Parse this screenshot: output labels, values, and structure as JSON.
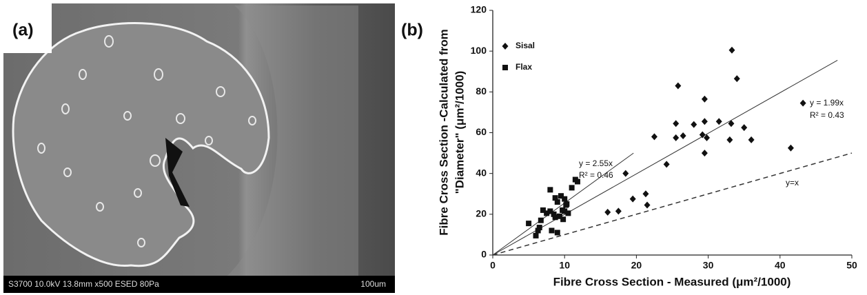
{
  "image_panel": {
    "label": "(a)",
    "info": "S3700 10.0kV 13.8mm x500 ESED 80Pa",
    "scale": "100um"
  },
  "chart_data": {
    "type": "scatter",
    "panel_label": "(b)",
    "x_label": "Fibre Cross Section - Measured (μm²/1000)",
    "y_label": [
      "Fibre Cross Section -Calculated from",
      "\"Diameter\" (μm²/1000)"
    ],
    "xlim": [
      0,
      50
    ],
    "ylim": [
      0,
      120
    ],
    "xticks": [
      0,
      10,
      20,
      30,
      40,
      50
    ],
    "yticks": [
      0,
      20,
      40,
      60,
      80,
      100,
      120
    ],
    "series": [
      {
        "name": "Sisal",
        "marker": "diamond",
        "color": "#111111",
        "x": [
          33.3,
          34,
          25.8,
          29.5,
          43.2,
          25.5,
          28,
          29.5,
          31.5,
          33.2,
          22.5,
          25.5,
          26.5,
          29.2,
          29.8,
          35,
          36,
          33,
          41.5,
          29.5,
          24.2,
          18.5,
          19.5,
          21.3,
          21.5,
          16,
          17.5
        ],
        "values": [
          100.5,
          86.5,
          83,
          76.5,
          74.5,
          64.5,
          64,
          65.5,
          65.5,
          64.5,
          58,
          57.5,
          58.5,
          59,
          57.5,
          62.5,
          56.5,
          56.5,
          52.5,
          50,
          44.5,
          40,
          27.5,
          30,
          24.5,
          21,
          21.5
        ]
      },
      {
        "name": "Flax",
        "marker": "square",
        "color": "#111111",
        "x": [
          5,
          6,
          6.3,
          6.5,
          6.7,
          7,
          7.5,
          8,
          8,
          8.2,
          8.5,
          8.7,
          9,
          9,
          9.3,
          9.5,
          9.8,
          10,
          10.2,
          10,
          10.5,
          11,
          11.5,
          11.8,
          8.7,
          9.7,
          10.3
        ],
        "values": [
          15.5,
          9.5,
          12,
          13.5,
          17,
          22,
          20.5,
          21.5,
          32,
          12,
          20,
          28,
          11,
          26,
          19,
          29,
          17.5,
          21.5,
          24.5,
          27.5,
          20.5,
          33,
          37,
          36,
          18.5,
          22,
          25
        ]
      }
    ],
    "fits": [
      {
        "slope": 2.55,
        "x_end": 19.6,
        "dashed": false,
        "labels": [
          "y = 2.55x",
          "R² = 0.46"
        ]
      },
      {
        "slope": 1.99,
        "x_end": 48,
        "dashed": false,
        "labels": [
          "y = 1.99x",
          "R² = 0.43"
        ]
      },
      {
        "slope": 1,
        "x_end": 50,
        "dashed": true,
        "labels": [
          "y=x"
        ]
      }
    ]
  }
}
